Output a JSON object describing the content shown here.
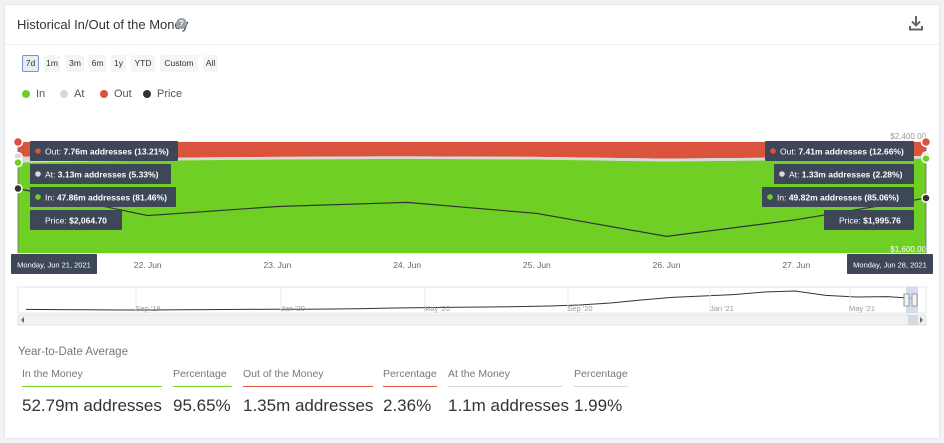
{
  "header": {
    "title": "Historical In/Out of the Money",
    "help_icon": "question-circle-icon",
    "download_icon": "download-icon"
  },
  "ranges": {
    "items": [
      "7d",
      "1m",
      "3m",
      "6m",
      "1y",
      "YTD",
      "Custom",
      "All"
    ],
    "active": "7d"
  },
  "legend": [
    {
      "label": "In",
      "color": "#6fcf25"
    },
    {
      "label": "At",
      "color": "#d9d9d9"
    },
    {
      "label": "Out",
      "color": "#d9533d"
    },
    {
      "label": "Price",
      "color": "#333333"
    }
  ],
  "chart_data": {
    "type": "area",
    "x": [
      "Jun 21, 2021",
      "Jun 22, 2021",
      "Jun 23, 2021",
      "Jun 24, 2021",
      "Jun 25, 2021",
      "Jun 26, 2021",
      "Jun 27, 2021",
      "Jun 28, 2021"
    ],
    "x_tick_labels": [
      "22. Jun",
      "23. Jun",
      "24. Jun",
      "25. Jun",
      "26. Jun",
      "27. Jun"
    ],
    "series": [
      {
        "name": "In",
        "type": "area",
        "unit": "percent",
        "values": [
          81.46,
          83.2,
          84.2,
          84.8,
          84.2,
          82.4,
          83.6,
          85.06
        ]
      },
      {
        "name": "At",
        "type": "area",
        "unit": "percent",
        "values": [
          5.33,
          2.5,
          2.4,
          2.3,
          2.4,
          2.6,
          2.5,
          2.28
        ]
      },
      {
        "name": "Out",
        "type": "area",
        "unit": "percent",
        "values": [
          13.21,
          14.3,
          13.4,
          12.9,
          13.4,
          15.0,
          13.9,
          12.66
        ]
      },
      {
        "name": "Price",
        "type": "line",
        "unit": "USD",
        "values": [
          2064.7,
          1870,
          1935,
          1965,
          1885,
          1720,
          1840,
          1995.76
        ]
      }
    ],
    "y_right": {
      "min": 1600,
      "max": 2400,
      "tick_labels": [
        "$2,400.00",
        "$1,600.00"
      ]
    },
    "tooltips": [
      {
        "date": "Monday, Jun 21, 2021",
        "out": "7.76m addresses (13.21%)",
        "at": "3.13m addresses (5.33%)",
        "in": "47.86m addresses (81.46%)",
        "price": "$2,064.70"
      },
      {
        "date": "Monday, Jun 28, 2021",
        "out": "7.41m addresses (12.66%)",
        "at": "1.33m addresses (2.28%)",
        "in": "49.82m addresses (85.06%)",
        "price": "$1,995.76"
      }
    ],
    "tooltip_labels": {
      "out": "Out:",
      "at": "At:",
      "in": "In:",
      "price": "Price:"
    },
    "navigator": {
      "labels": [
        "Sep '19",
        "Jan '20",
        "May '20",
        "Sep '20",
        "Jan '21",
        "May '21"
      ],
      "values": [
        0.08,
        0.07,
        0.06,
        0.05,
        0.05,
        0.06,
        0.07,
        0.08,
        0.09,
        0.09,
        0.1,
        0.12,
        0.15,
        0.17,
        0.19,
        0.2,
        0.22,
        0.25,
        0.3,
        0.4,
        0.55,
        0.68,
        0.75,
        0.82,
        0.95,
        1.0,
        0.78,
        0.7,
        0.72,
        0.62
      ]
    }
  },
  "stats": {
    "title": "Year-to-Date Average",
    "items": [
      {
        "label": "In the Money",
        "value": "52.79m addresses",
        "accent": "#6fcf25"
      },
      {
        "label": "Percentage",
        "value": "95.65%",
        "accent": "#6fcf25"
      },
      {
        "label": "Out of the Money",
        "value": "1.35m addresses",
        "accent": "#d9533d"
      },
      {
        "label": "Percentage",
        "value": "2.36%",
        "accent": "#d9533d"
      },
      {
        "label": "At the Money",
        "value": "1.1m addresses",
        "accent": "#d9d9d9"
      },
      {
        "label": "Percentage",
        "value": "1.99%",
        "accent": "#d9d9d9"
      }
    ]
  }
}
